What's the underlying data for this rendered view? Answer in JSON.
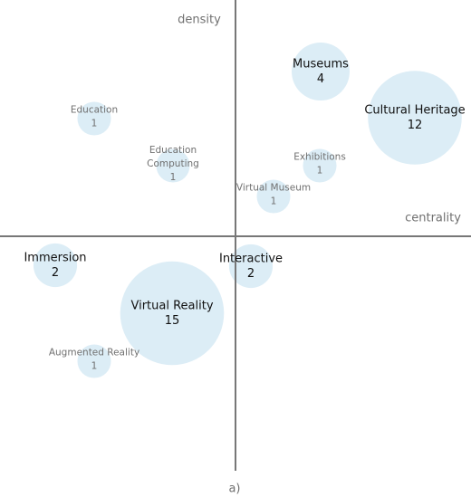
{
  "labels": {
    "y_axis": "density",
    "x_axis": "centrality",
    "caption": "a)"
  },
  "nodes": [
    {
      "label": "Museums",
      "count": 4
    },
    {
      "label": "Cultural Heritage",
      "count": 12
    },
    {
      "label": "Education",
      "count": 1
    },
    {
      "label": "Education Computing",
      "count": 1
    },
    {
      "label": "Exhibitions",
      "count": 1
    },
    {
      "label": "Virtual Museum",
      "count": 1
    },
    {
      "label": "Immersion",
      "count": 2
    },
    {
      "label": "Interactive",
      "count": 2
    },
    {
      "label": "Virtual Reality",
      "count": 15
    },
    {
      "label": "Augmented Reality",
      "count": 1
    }
  ]
}
